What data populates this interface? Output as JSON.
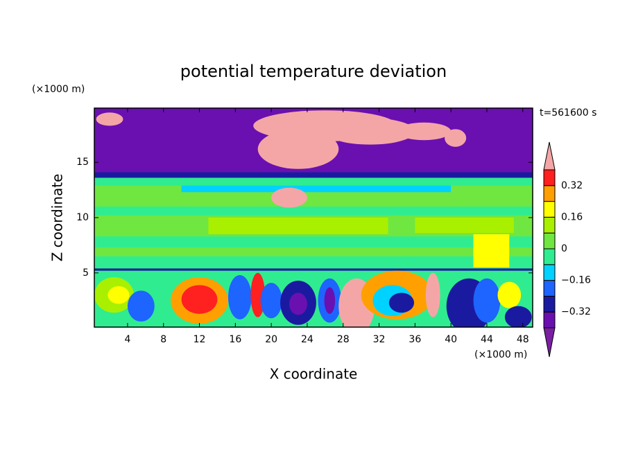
{
  "chart_data": {
    "type": "contour",
    "title": "potential temperature deviation",
    "xlabel": "X coordinate",
    "ylabel": "Z coordinate",
    "x_unit": "(×1000 m)",
    "y_unit": "(×1000 m)",
    "annotation": "t=561600 s",
    "xlim": [
      0.3,
      49.1
    ],
    "xticks": [
      4,
      8,
      12,
      16,
      20,
      24,
      28,
      32,
      36,
      40,
      44,
      48
    ],
    "ylim": [
      0.1,
      19.9
    ],
    "yticks": [
      5,
      10,
      15
    ],
    "colorbar": {
      "levels": [
        -0.4,
        -0.32,
        -0.24,
        -0.16,
        -0.08,
        0,
        0.08,
        0.16,
        0.24,
        0.32,
        0.4
      ],
      "ticks": [
        {
          "value": -0.32,
          "label": "−0.32"
        },
        {
          "value": -0.16,
          "label": "−0.16"
        },
        0,
        0.16,
        0.32
      ],
      "colors": [
        "#7b1fa2",
        "#6a10b0",
        "#1a1aa0",
        "#1e64ff",
        "#00d2ff",
        "#30ec90",
        "#70e640",
        "#a8f000",
        "#ffff00",
        "#ffa000",
        "#ff2020",
        "#f4a6a6"
      ]
    }
  }
}
